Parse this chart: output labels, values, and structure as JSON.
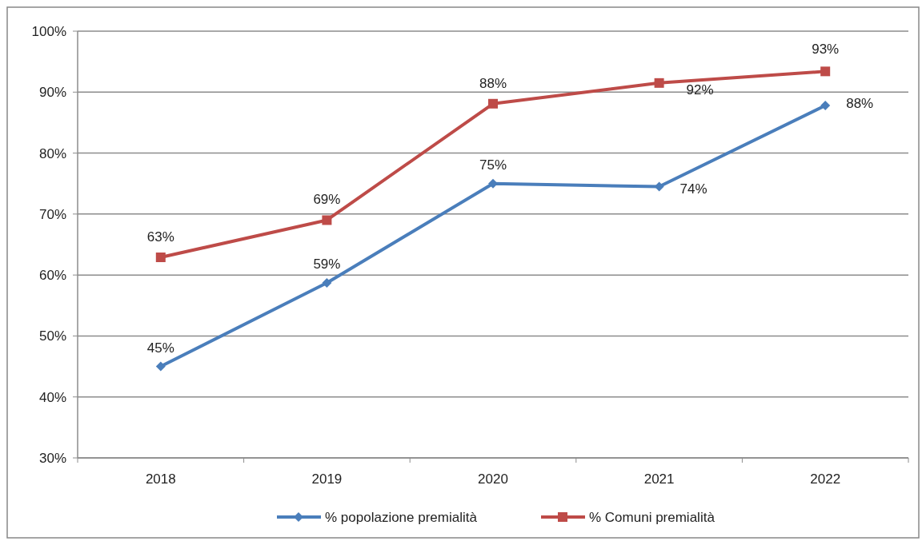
{
  "chart_data": {
    "type": "line",
    "categories": [
      "2018",
      "2019",
      "2020",
      "2021",
      "2022"
    ],
    "series": [
      {
        "name": "% popolazione premialità",
        "color": "#4a7ebb",
        "values": [
          45,
          58.7,
          75,
          74.5,
          87.8
        ],
        "value_labels": [
          "45%",
          "59%",
          "75%",
          "74%",
          "88%"
        ],
        "marker": "diamond"
      },
      {
        "name": "% Comuni premialità",
        "color": "#be4b48",
        "values": [
          62.9,
          69,
          88.1,
          91.5,
          93.4
        ],
        "value_labels": [
          "63%",
          "69%",
          "88%",
          "92%",
          "93%"
        ],
        "marker": "square"
      }
    ],
    "ylim": [
      30,
      100
    ],
    "yticks": [
      {
        "value": 30,
        "label": "30%"
      },
      {
        "value": 40,
        "label": "40%"
      },
      {
        "value": 50,
        "label": "50%"
      },
      {
        "value": 60,
        "label": "60%"
      },
      {
        "value": 70,
        "label": "70%"
      },
      {
        "value": 80,
        "label": "80%"
      },
      {
        "value": 90,
        "label": "90%"
      },
      {
        "value": 100,
        "label": "100%"
      }
    ],
    "grid": "y",
    "legend": "bottom",
    "line_style": "solid"
  }
}
